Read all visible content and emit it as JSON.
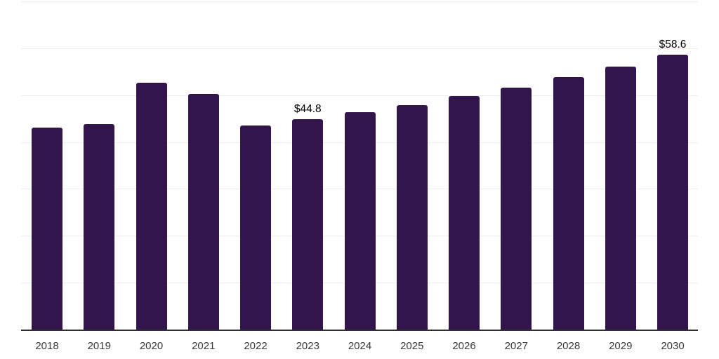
{
  "chart_data": {
    "type": "bar",
    "title": "",
    "xlabel": "",
    "ylabel": "",
    "categories": [
      "2018",
      "2019",
      "2020",
      "2021",
      "2022",
      "2023",
      "2024",
      "2025",
      "2026",
      "2027",
      "2028",
      "2029",
      "2030"
    ],
    "values": [
      43.1,
      43.9,
      52.6,
      50.3,
      43.6,
      44.8,
      46.4,
      47.8,
      49.8,
      51.6,
      53.8,
      56.1,
      58.6
    ],
    "bar_labels": [
      "",
      "",
      "",
      "",
      "",
      "$44.8",
      "",
      "",
      "",
      "",
      "",
      "",
      "$58.6"
    ],
    "ylim": [
      0,
      70
    ],
    "grid_values": [
      10,
      20,
      30,
      40,
      50,
      60,
      70
    ],
    "grid": true,
    "legend_position": "none",
    "colors": {
      "bar": "#32154b",
      "gridline": "#ededed",
      "axis": "#303030",
      "tick_label": "#3a3a3a",
      "annotation": "#000000",
      "background": "#ffffff"
    }
  }
}
